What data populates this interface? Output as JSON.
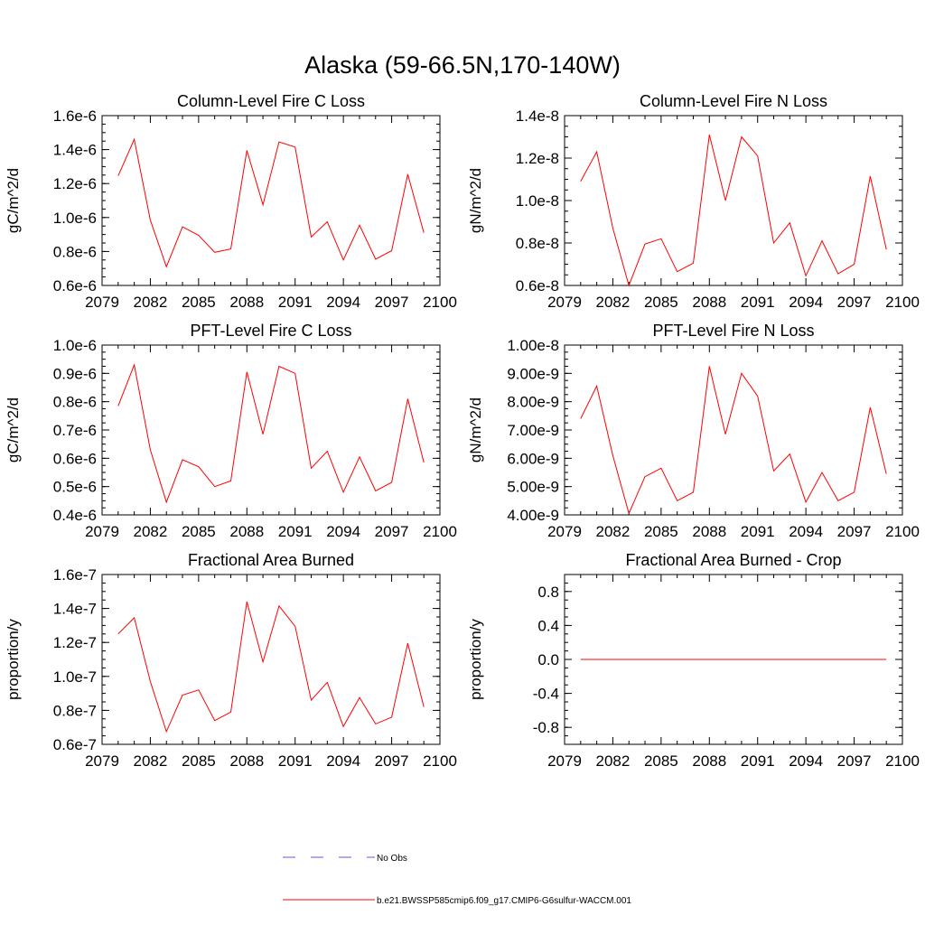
{
  "figure": {
    "title": "Alaska (59-66.5N,170-140W)"
  },
  "legend": {
    "items": [
      {
        "label": "No Obs",
        "color": "#5b5bd6",
        "dashed": true
      },
      {
        "label": "b.e21.BWSSP585cmip6.f09_g17.CMIP6-G6sulfur-WACCM.001",
        "color": "#ff0000",
        "dashed": false
      }
    ]
  },
  "chart_data": [
    {
      "type": "line",
      "title": "Column-Level Fire C Loss",
      "ylabel": "gC/m^2/d",
      "xlabel": "",
      "xlim": [
        2079,
        2100
      ],
      "ylim": [
        6e-07,
        1.6e-06
      ],
      "xticks": [
        2079,
        2082,
        2085,
        2088,
        2091,
        2094,
        2097,
        2100
      ],
      "yticks": [
        6e-07,
        8e-07,
        1e-06,
        1.2e-06,
        1.4e-06,
        1.6e-06
      ],
      "ytick_labels": [
        "0.6e-6",
        "0.8e-6",
        "1.0e-6",
        "1.2e-6",
        "1.4e-6",
        "1.6e-6"
      ],
      "grid": false,
      "series": [
        {
          "color": "#ff0000",
          "x": [
            2080,
            2081,
            2082,
            2083,
            2084,
            2085,
            2086,
            2087,
            2088,
            2089,
            2090,
            2091,
            2092,
            2093,
            2094,
            2095,
            2096,
            2097,
            2098,
            2099
          ],
          "values": [
            1.245e-06,
            1.46e-06,
            9.85e-07,
            7.1e-07,
            9.45e-07,
            8.95e-07,
            7.95e-07,
            8.15e-07,
            1.395e-06,
            1.075e-06,
            1.445e-06,
            1.415e-06,
            8.85e-07,
            9.75e-07,
            7.5e-07,
            9.55e-07,
            7.55e-07,
            8.05e-07,
            1.255e-06,
            9.1e-07
          ]
        }
      ]
    },
    {
      "type": "line",
      "title": "Column-Level Fire N Loss",
      "ylabel": "gN/m^2/d",
      "xlabel": "",
      "xlim": [
        2079,
        2100
      ],
      "ylim": [
        6e-09,
        1.4e-08
      ],
      "xticks": [
        2079,
        2082,
        2085,
        2088,
        2091,
        2094,
        2097,
        2100
      ],
      "yticks": [
        6e-09,
        8e-09,
        1e-08,
        1.2e-08,
        1.4e-08
      ],
      "ytick_labels": [
        "0.6e-8",
        "0.8e-8",
        "1.0e-8",
        "1.2e-8",
        "1.4e-8"
      ],
      "grid": false,
      "series": [
        {
          "color": "#ff0000",
          "x": [
            2080,
            2081,
            2082,
            2083,
            2084,
            2085,
            2086,
            2087,
            2088,
            2089,
            2090,
            2091,
            2092,
            2093,
            2094,
            2095,
            2096,
            2097,
            2098,
            2099
          ],
          "values": [
            1.09e-08,
            1.23e-08,
            8.7e-09,
            6e-09,
            7.95e-09,
            8.2e-09,
            6.65e-09,
            7.05e-09,
            1.31e-08,
            1e-08,
            1.3e-08,
            1.21e-08,
            8e-09,
            8.95e-09,
            6.45e-09,
            8.1e-09,
            6.55e-09,
            7e-09,
            1.115e-08,
            7.7e-09
          ]
        }
      ]
    },
    {
      "type": "line",
      "title": "PFT-Level Fire C Loss",
      "ylabel": "gC/m^2/d",
      "xlabel": "",
      "xlim": [
        2079,
        2100
      ],
      "ylim": [
        4e-07,
        1e-06
      ],
      "xticks": [
        2079,
        2082,
        2085,
        2088,
        2091,
        2094,
        2097,
        2100
      ],
      "yticks": [
        4e-07,
        5e-07,
        6e-07,
        7e-07,
        8e-07,
        9e-07,
        1e-06
      ],
      "ytick_labels": [
        "0.4e-6",
        "0.5e-6",
        "0.6e-6",
        "0.7e-6",
        "0.8e-6",
        "0.9e-6",
        "1.0e-6"
      ],
      "grid": false,
      "series": [
        {
          "color": "#ff0000",
          "x": [
            2080,
            2081,
            2082,
            2083,
            2084,
            2085,
            2086,
            2087,
            2088,
            2089,
            2090,
            2091,
            2092,
            2093,
            2094,
            2095,
            2096,
            2097,
            2098,
            2099
          ],
          "values": [
            7.85e-07,
            9.3e-07,
            6.3e-07,
            4.45e-07,
            5.95e-07,
            5.7e-07,
            5e-07,
            5.2e-07,
            9.05e-07,
            6.85e-07,
            9.25e-07,
            9e-07,
            5.65e-07,
            6.25e-07,
            4.8e-07,
            6.05e-07,
            4.85e-07,
            5.15e-07,
            8.1e-07,
            5.85e-07
          ]
        }
      ]
    },
    {
      "type": "line",
      "title": "PFT-Level Fire N Loss",
      "ylabel": "gN/m^2/d",
      "xlabel": "",
      "xlim": [
        2079,
        2100
      ],
      "ylim": [
        4e-09,
        1e-08
      ],
      "xticks": [
        2079,
        2082,
        2085,
        2088,
        2091,
        2094,
        2097,
        2100
      ],
      "yticks": [
        4e-09,
        5e-09,
        6e-09,
        7e-09,
        8e-09,
        9e-09,
        1e-08
      ],
      "ytick_labels": [
        "4.00e-9",
        "5.00e-9",
        "6.00e-9",
        "7.00e-9",
        "8.00e-9",
        "9.00e-9",
        "1.00e-8"
      ],
      "grid": false,
      "series": [
        {
          "color": "#ff0000",
          "x": [
            2080,
            2081,
            2082,
            2083,
            2084,
            2085,
            2086,
            2087,
            2088,
            2089,
            2090,
            2091,
            2092,
            2093,
            2094,
            2095,
            2096,
            2097,
            2098,
            2099
          ],
          "values": [
            7.4e-09,
            8.55e-09,
            6.1e-09,
            4.05e-09,
            5.35e-09,
            5.65e-09,
            4.5e-09,
            4.8e-09,
            9.25e-09,
            6.85e-09,
            9e-09,
            8.2e-09,
            5.55e-09,
            6.15e-09,
            4.45e-09,
            5.5e-09,
            4.5e-09,
            4.8e-09,
            7.8e-09,
            5.45e-09
          ]
        }
      ]
    },
    {
      "type": "line",
      "title": "Fractional Area Burned",
      "ylabel": "proportion/y",
      "xlabel": "",
      "xlim": [
        2079,
        2100
      ],
      "ylim": [
        6e-08,
        1.6e-07
      ],
      "xticks": [
        2079,
        2082,
        2085,
        2088,
        2091,
        2094,
        2097,
        2100
      ],
      "yticks": [
        6e-08,
        8e-08,
        1e-07,
        1.2e-07,
        1.4e-07,
        1.6e-07
      ],
      "ytick_labels": [
        "0.6e-7",
        "0.8e-7",
        "1.0e-7",
        "1.2e-7",
        "1.4e-7",
        "1.6e-7"
      ],
      "grid": false,
      "series": [
        {
          "color": "#ff0000",
          "x": [
            2080,
            2081,
            2082,
            2083,
            2084,
            2085,
            2086,
            2087,
            2088,
            2089,
            2090,
            2091,
            2092,
            2093,
            2094,
            2095,
            2096,
            2097,
            2098,
            2099
          ],
          "values": [
            1.25e-07,
            1.345e-07,
            9.7e-08,
            6.75e-08,
            8.9e-08,
            9.2e-08,
            7.4e-08,
            7.9e-08,
            1.44e-07,
            1.085e-07,
            1.415e-07,
            1.295e-07,
            8.6e-08,
            9.65e-08,
            7.05e-08,
            8.75e-08,
            7.2e-08,
            7.6e-08,
            1.195e-07,
            8.2e-08
          ]
        }
      ]
    },
    {
      "type": "line",
      "title": "Fractional Area Burned - Crop",
      "ylabel": "proportion/y",
      "xlabel": "",
      "xlim": [
        2079,
        2100
      ],
      "ylim": [
        -1.0,
        1.0
      ],
      "xticks": [
        2079,
        2082,
        2085,
        2088,
        2091,
        2094,
        2097,
        2100
      ],
      "yticks": [
        -0.8,
        -0.4,
        0.0,
        0.4,
        0.8
      ],
      "ytick_labels": [
        "-0.8",
        "-0.4",
        "0.0",
        "0.4",
        "0.8"
      ],
      "grid": false,
      "series": [
        {
          "color": "#ff0000",
          "x": [
            2080,
            2081,
            2082,
            2083,
            2084,
            2085,
            2086,
            2087,
            2088,
            2089,
            2090,
            2091,
            2092,
            2093,
            2094,
            2095,
            2096,
            2097,
            2098,
            2099
          ],
          "values": [
            0,
            0,
            0,
            0,
            0,
            0,
            0,
            0,
            0,
            0,
            0,
            0,
            0,
            0,
            0,
            0,
            0,
            0,
            0,
            0
          ]
        }
      ]
    }
  ]
}
